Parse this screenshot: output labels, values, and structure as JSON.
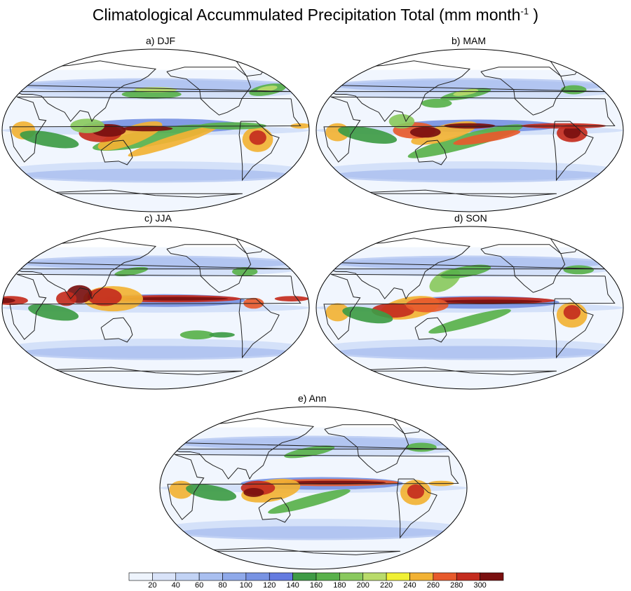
{
  "figure": {
    "title_main": "Climatological Accummulated Precipitation Total (mm month",
    "title_sup": "-1",
    "title_end": " )"
  },
  "panels": [
    {
      "id": "djf",
      "label": "a)  DJF"
    },
    {
      "id": "mam",
      "label": "b)  MAM"
    },
    {
      "id": "jja",
      "label": "c)  JJA"
    },
    {
      "id": "son",
      "label": "d)  SON"
    },
    {
      "id": "ann",
      "label": "e)  Ann"
    }
  ],
  "colorbar": {
    "ticks": [
      "20",
      "40",
      "60",
      "80",
      "100",
      "120",
      "140",
      "160",
      "180",
      "200",
      "220",
      "240",
      "260",
      "280",
      "300"
    ],
    "colors": [
      "#eef4fd",
      "#d9e3f9",
      "#c2d3f5",
      "#a9bff0",
      "#8fa9ea",
      "#7893e3",
      "#647be0",
      "#3e9b45",
      "#59b14b",
      "#8ac95e",
      "#b9db6a",
      "#f0f034",
      "#f2b234",
      "#e75a2c",
      "#c42c1e",
      "#7a1010"
    ]
  },
  "colors": {
    "ocean_background": "#f1f6fe",
    "land_outline": "#222222"
  }
}
